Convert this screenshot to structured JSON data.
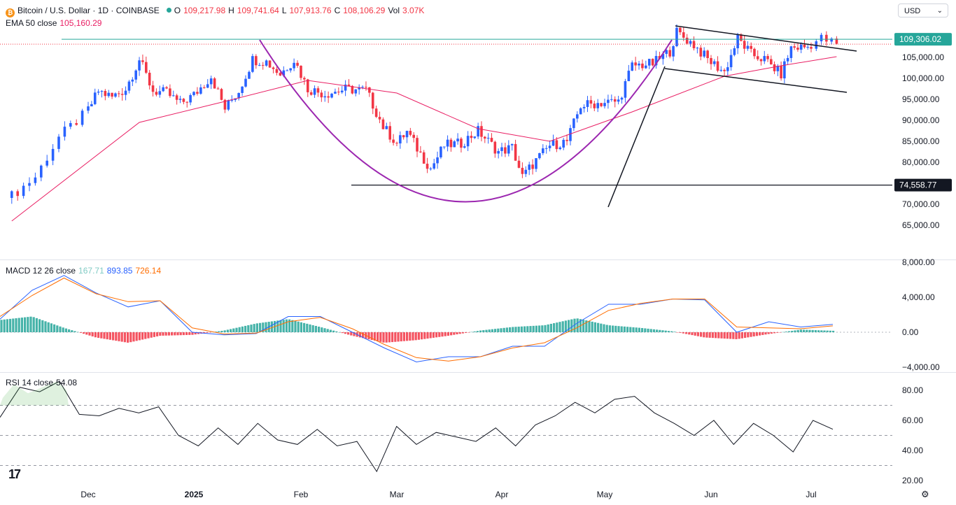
{
  "header": {
    "symbol": "Bitcoin / U.S. Dollar · 1D · COINBASE",
    "o_label": "O",
    "o": "109,217.98",
    "h_label": "H",
    "h": "109,741.64",
    "l_label": "L",
    "l": "107,913.76",
    "c_label": "C",
    "c": "108,106.29",
    "vol_label": "Vol",
    "vol": "3.07K",
    "ema_label": "EMA 50 close",
    "ema_value": "105,160.29",
    "currency": "USD"
  },
  "colors": {
    "up": "#2962ff",
    "down": "#f23645",
    "ema": "#e91e63",
    "pattern": "#9c27b0",
    "macd": "#2962ff",
    "signal": "#ff6d00",
    "hist_up": "#26a69a",
    "hist_down": "#f23645",
    "rsi": "#131722"
  },
  "chart_data": [
    {
      "type": "candlestick",
      "title": "Bitcoin / U.S. Dollar · 1D · COINBASE",
      "x": [
        "Dec",
        "2025",
        "Feb",
        "Mar",
        "Apr",
        "May",
        "Jun",
        "Jul"
      ],
      "y_ticks": [
        "105,000.00",
        "100,000.00",
        "95,000.00",
        "90,000.00",
        "85,000.00",
        "80,000.00",
        "70,000.00",
        "65,000.00"
      ],
      "ylim": [
        61000,
        113000
      ],
      "price_tags": [
        {
          "label": "109,306.02",
          "value": 109306.02,
          "color": "#26a69a"
        },
        {
          "label": "74,558.77",
          "value": 74558.77,
          "color": "#131722"
        }
      ],
      "close_path": [
        [
          "Nov 18",
          72000
        ],
        [
          "Nov 22",
          76500
        ],
        [
          "Nov 26",
          86000
        ],
        [
          "Nov 30",
          91000
        ],
        [
          "Dec 4",
          97000
        ],
        [
          "Dec 8",
          95500
        ],
        [
          "Dec 12",
          97500
        ],
        [
          "Dec 16",
          104500
        ],
        [
          "Dec 20",
          97000
        ],
        [
          "Dec 24",
          96500
        ],
        [
          "Dec 28",
          94000
        ],
        [
          "Jan 1",
          96000
        ],
        [
          "Jan 6",
          100500
        ],
        [
          "Jan 10",
          92800
        ],
        [
          "Jan 14",
          97000
        ],
        [
          "Jan 18",
          104500
        ],
        [
          "Jan 22",
          104000
        ],
        [
          "Jan 26",
          101000
        ],
        [
          "Jan 30",
          104500
        ],
        [
          "Feb 3",
          97500
        ],
        [
          "Feb 8",
          96300
        ],
        [
          "Feb 14",
          97400
        ],
        [
          "Feb 20",
          97200
        ],
        [
          "Feb 25",
          88500
        ],
        [
          "Mar 1",
          84500
        ],
        [
          "Mar 4",
          87300
        ],
        [
          "Mar 8",
          82000
        ],
        [
          "Mar 11",
          78500
        ],
        [
          "Mar 15",
          84000
        ],
        [
          "Mar 20",
          84500
        ],
        [
          "Mar 25",
          87500
        ],
        [
          "Mar 31",
          82500
        ],
        [
          "Apr 4",
          83500
        ],
        [
          "Apr 7",
          76500
        ],
        [
          "Apr 10",
          79500
        ],
        [
          "Apr 15",
          84000
        ],
        [
          "Apr 20",
          85000
        ],
        [
          "Apr 24",
          93500
        ],
        [
          "Apr 30",
          94200
        ],
        [
          "May 5",
          94500
        ],
        [
          "May 9",
          103000
        ],
        [
          "May 15",
          103500
        ],
        [
          "May 20",
          106500
        ],
        [
          "May 22",
          111000
        ],
        [
          "May 27",
          108000
        ],
        [
          "May 31",
          104500
        ],
        [
          "Jun 5",
          101500
        ],
        [
          "Jun 9",
          109500
        ],
        [
          "Jun 13",
          105800
        ],
        [
          "Jun 17",
          104500
        ],
        [
          "Jun 22",
          101000
        ],
        [
          "Jun 25",
          107300
        ],
        [
          "Jun 30",
          107500
        ],
        [
          "Jul 3",
          109500
        ],
        [
          "Jul 6",
          108100
        ]
      ],
      "ema50_path": [
        [
          "Nov 18",
          66000
        ],
        [
          "Dec 16",
          89500
        ],
        [
          "Jan 10",
          94500
        ],
        [
          "Feb 3",
          99500
        ],
        [
          "Mar 1",
          96500
        ],
        [
          "Mar 25",
          88000
        ],
        [
          "Apr 15",
          85000
        ],
        [
          "May 9",
          92000
        ],
        [
          "Jun 5",
          100500
        ],
        [
          "Jun 22",
          103000
        ],
        [
          "Jul 6",
          105160.29
        ]
      ],
      "patterns": {
        "cup_label": "",
        "support_value": 74558.77,
        "channel_upper": [
          [
            111500,
            109300,
            107000
          ]
        ],
        "channel_lower": [
          [
            104000,
            100500,
            97500
          ]
        ]
      }
    },
    {
      "type": "line",
      "title": "MACD 12 26 close",
      "values_shown": [
        "167.71",
        "893.85",
        "726.14"
      ],
      "y_ticks": [
        "8,000.00",
        "4,000.00",
        "0.00",
        "−4,000.00"
      ],
      "ylim": [
        -5000,
        8500
      ],
      "series": [
        {
          "name": "MACD",
          "values": [
            1500,
            4800,
            6500,
            4500,
            2900,
            3600,
            0,
            -300,
            -150,
            1800,
            1800,
            0,
            -1800,
            -3400,
            -2800,
            -2800,
            -1600,
            -1600,
            1000,
            3200,
            3200,
            3800,
            3700,
            0,
            1200,
            600,
            893.85
          ]
        },
        {
          "name": "Signal",
          "values": [
            1800,
            4200,
            6200,
            4400,
            3500,
            3600,
            500,
            -200,
            -100,
            1200,
            1700,
            400,
            -1400,
            -2900,
            -3300,
            -2800,
            -1800,
            -1200,
            500,
            2500,
            3300,
            3800,
            3800,
            600,
            500,
            400,
            726.14
          ]
        }
      ],
      "histogram": [
        1400,
        1800,
        500,
        -600,
        -1200,
        -400,
        -300,
        200,
        1000,
        1500,
        600,
        -400,
        -1200,
        -900,
        -400,
        200,
        600,
        800,
        1600,
        800,
        500,
        100,
        -600,
        -800,
        -200,
        300,
        167.71
      ]
    },
    {
      "type": "line",
      "title": "RSI 14 close",
      "values_shown": [
        "54.08"
      ],
      "y_ticks": [
        "80.00",
        "60.00",
        "40.00",
        "20.00"
      ],
      "ylim": [
        18,
        88
      ],
      "bands": [
        30,
        50,
        70
      ],
      "series": [
        {
          "name": "RSI",
          "values": [
            62,
            82,
            79,
            86,
            64,
            63,
            68,
            65,
            69,
            50,
            43,
            55,
            44,
            58,
            47,
            44,
            54,
            43,
            46,
            26,
            56,
            44,
            52,
            49,
            46,
            55,
            43,
            57,
            63,
            72,
            65,
            74,
            76,
            65,
            58,
            50,
            60,
            44,
            58,
            50,
            39,
            60,
            54.08
          ]
        }
      ]
    }
  ]
}
